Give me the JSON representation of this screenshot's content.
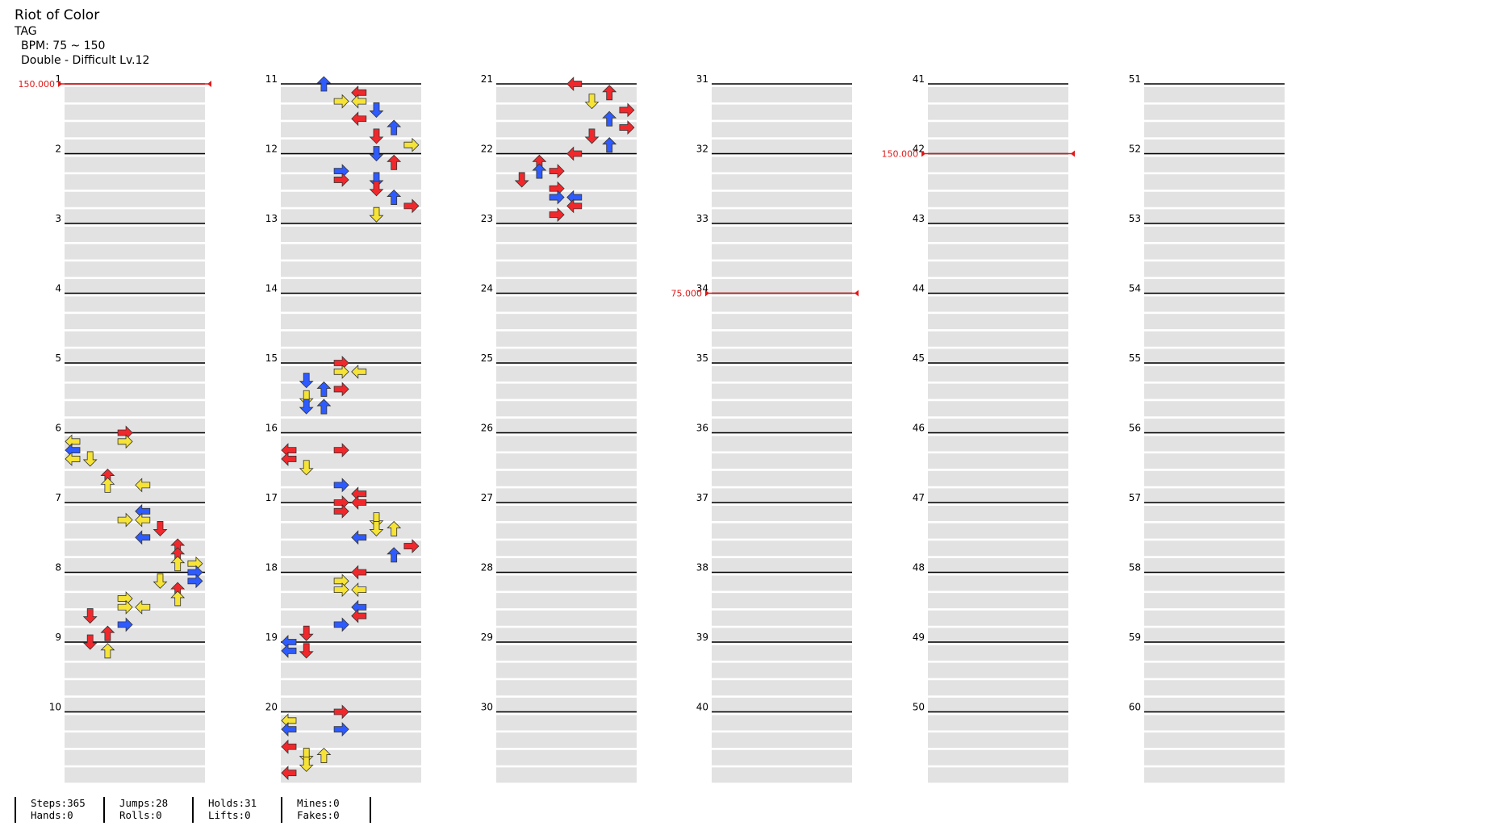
{
  "song": {
    "title": "Riot of Color",
    "artist": "TAG",
    "bpm_label": "BPM: 75 ~ 150",
    "difficulty_label": "Double - Difficult  Lv.12"
  },
  "measures": [
    "1",
    "2",
    "3",
    "4",
    "5",
    "6",
    "7",
    "8",
    "9",
    "10",
    "11",
    "12",
    "13",
    "14",
    "15",
    "16",
    "17",
    "18",
    "19",
    "20",
    "21",
    "22",
    "23",
    "24",
    "25",
    "26",
    "27",
    "28",
    "29",
    "30",
    "31",
    "32",
    "33",
    "34",
    "35",
    "36",
    "37",
    "38",
    "39",
    "40",
    "41",
    "42",
    "43",
    "44",
    "45",
    "46",
    "47",
    "48",
    "49",
    "50",
    "51",
    "52",
    "53",
    "54",
    "55",
    "56",
    "57",
    "58",
    "59",
    "60"
  ],
  "bpm_changes": [
    {
      "measure": 1,
      "label": "150.000"
    },
    {
      "measure": 34,
      "label": "75.000"
    },
    {
      "measure": 42,
      "label": "150.000"
    }
  ],
  "colors": {
    "red": "#f0282c",
    "blue": "#2e5bff",
    "yellow": "#f6e337",
    "orange": "#f7923a",
    "hold": "#7fe07a",
    "bpm_line": "#e01818",
    "lane_fill": "#e2e2e2"
  },
  "notes": [
    {
      "m": 6,
      "b": 0,
      "c": 3,
      "col": "red"
    },
    {
      "m": 6,
      "b": 0.5,
      "c": 3,
      "col": "yellow"
    },
    {
      "m": 6,
      "b": 0.5,
      "c": 0,
      "col": "yellow"
    },
    {
      "m": 6,
      "b": 1,
      "c": 0,
      "col": "blue"
    },
    {
      "m": 6,
      "b": 1.5,
      "c": 0,
      "col": "yellow"
    },
    {
      "m": 6,
      "b": 1.5,
      "c": 1,
      "col": "yellow"
    },
    {
      "m": 6,
      "b": 2.5,
      "c": 2,
      "col": "red"
    },
    {
      "m": 6,
      "b": 3,
      "c": 2,
      "col": "yellow"
    },
    {
      "m": 6,
      "b": 3,
      "c": 4,
      "col": "yellow"
    },
    {
      "m": 7,
      "b": 0.5,
      "c": 4,
      "col": "blue"
    },
    {
      "m": 7,
      "b": 1,
      "c": 3,
      "col": "yellow"
    },
    {
      "m": 7,
      "b": 1,
      "c": 4,
      "col": "yellow"
    },
    {
      "m": 7,
      "b": 1.5,
      "c": 5,
      "col": "red"
    },
    {
      "m": 7,
      "b": 2,
      "c": 4,
      "col": "blue"
    },
    {
      "m": 7,
      "b": 2.5,
      "c": 6,
      "col": "red"
    },
    {
      "m": 7,
      "b": 3,
      "c": 6,
      "col": "red"
    },
    {
      "m": 7,
      "b": 3.5,
      "c": 6,
      "col": "yellow"
    },
    {
      "m": 7,
      "b": 3.5,
      "c": 7,
      "col": "yellow"
    },
    {
      "m": 8,
      "b": 0,
      "c": 7,
      "col": "blue"
    },
    {
      "m": 8,
      "b": 0.5,
      "c": 5,
      "col": "yellow"
    },
    {
      "m": 8,
      "b": 0.5,
      "c": 7,
      "col": "blue"
    },
    {
      "m": 8,
      "b": 1,
      "c": 6,
      "col": "red"
    },
    {
      "m": 8,
      "b": 1.5,
      "c": 6,
      "col": "yellow"
    },
    {
      "m": 8,
      "b": 1.5,
      "c": 3,
      "col": "yellow"
    },
    {
      "m": 8,
      "b": 2,
      "c": 3,
      "col": "yellow"
    },
    {
      "m": 8,
      "b": 2,
      "c": 4,
      "col": "yellow"
    },
    {
      "m": 8,
      "b": 2.5,
      "c": 1,
      "col": "red"
    },
    {
      "m": 8,
      "b": 3,
      "c": 3,
      "col": "blue"
    },
    {
      "m": 8,
      "b": 3.5,
      "c": 2,
      "col": "red"
    },
    {
      "m": 9,
      "b": 0,
      "c": 1,
      "col": "red"
    },
    {
      "m": 9,
      "b": 0.5,
      "c": 2,
      "col": "yellow"
    },
    {
      "m": 11,
      "b": 0,
      "c": 2,
      "col": "blue"
    },
    {
      "m": 11,
      "b": 0.5,
      "c": 4,
      "col": "red"
    },
    {
      "m": 11,
      "b": 1,
      "c": 3,
      "col": "yellow"
    },
    {
      "m": 11,
      "b": 1,
      "c": 4,
      "col": "yellow"
    },
    {
      "m": 11,
      "b": 1.5,
      "c": 5,
      "col": "blue"
    },
    {
      "m": 11,
      "b": 2,
      "c": 4,
      "col": "red"
    },
    {
      "m": 11,
      "b": 2.5,
      "c": 6,
      "col": "blue"
    },
    {
      "m": 11,
      "b": 3,
      "c": 5,
      "col": "red"
    },
    {
      "m": 11,
      "b": 3.5,
      "c": 7,
      "col": "yellow"
    },
    {
      "m": 12,
      "b": 0,
      "c": 5,
      "col": "blue"
    },
    {
      "m": 12,
      "b": 0.5,
      "c": 6,
      "col": "red"
    },
    {
      "m": 12,
      "b": 1,
      "c": 3,
      "col": "blue"
    },
    {
      "m": 12,
      "b": 1.5,
      "c": 3,
      "col": "red"
    },
    {
      "m": 12,
      "b": 1.5,
      "c": 5,
      "col": "blue"
    },
    {
      "m": 12,
      "b": 2,
      "c": 5,
      "col": "red"
    },
    {
      "m": 12,
      "b": 2.5,
      "c": 6,
      "col": "blue"
    },
    {
      "m": 12,
      "b": 3,
      "c": 7,
      "col": "red"
    },
    {
      "m": 12,
      "b": 3.5,
      "c": 5,
      "col": "yellow"
    },
    {
      "m": 15,
      "b": 0,
      "c": 3,
      "col": "red"
    },
    {
      "m": 15,
      "b": 0.5,
      "c": 3,
      "col": "yellow"
    },
    {
      "m": 15,
      "b": 0.5,
      "c": 4,
      "col": "yellow"
    },
    {
      "m": 15,
      "b": 1,
      "c": 1,
      "col": "blue"
    },
    {
      "m": 15,
      "b": 1.5,
      "c": 2,
      "col": "blue"
    },
    {
      "m": 15,
      "b": 1.5,
      "c": 3,
      "col": "red"
    },
    {
      "m": 15,
      "b": 2,
      "c": 1,
      "col": "yellow"
    },
    {
      "m": 15,
      "b": 2.5,
      "c": 1,
      "col": "blue"
    },
    {
      "m": 15,
      "b": 2.5,
      "c": 2,
      "col": "blue"
    },
    {
      "m": 16,
      "b": 1,
      "c": 0,
      "col": "red"
    },
    {
      "m": 16,
      "b": 1,
      "c": 3,
      "col": "red"
    },
    {
      "m": 16,
      "b": 1.5,
      "c": 0,
      "col": "red"
    },
    {
      "m": 16,
      "b": 2,
      "c": 1,
      "col": "yellow"
    },
    {
      "m": 16,
      "b": 3,
      "c": 3,
      "col": "blue"
    },
    {
      "m": 16,
      "b": 3.5,
      "c": 4,
      "col": "red"
    },
    {
      "m": 17,
      "b": 0,
      "c": 3,
      "col": "red"
    },
    {
      "m": 17,
      "b": 0,
      "c": 4,
      "col": "red"
    },
    {
      "m": 17,
      "b": 0.5,
      "c": 3,
      "col": "red"
    },
    {
      "m": 17,
      "b": 1,
      "c": 5,
      "col": "yellow"
    },
    {
      "m": 17,
      "b": 1.5,
      "c": 5,
      "col": "yellow"
    },
    {
      "m": 17,
      "b": 1.5,
      "c": 6,
      "col": "yellow"
    },
    {
      "m": 17,
      "b": 2,
      "c": 4,
      "col": "blue"
    },
    {
      "m": 17,
      "b": 2.5,
      "c": 7,
      "col": "red"
    },
    {
      "m": 17,
      "b": 3,
      "c": 6,
      "col": "blue"
    },
    {
      "m": 18,
      "b": 0,
      "c": 4,
      "col": "red"
    },
    {
      "m": 18,
      "b": 0.5,
      "c": 3,
      "col": "yellow"
    },
    {
      "m": 18,
      "b": 1,
      "c": 3,
      "col": "yellow"
    },
    {
      "m": 18,
      "b": 1,
      "c": 4,
      "col": "yellow"
    },
    {
      "m": 18,
      "b": 2,
      "c": 4,
      "col": "blue"
    },
    {
      "m": 18,
      "b": 2.5,
      "c": 4,
      "col": "red"
    },
    {
      "m": 18,
      "b": 3,
      "c": 3,
      "col": "blue"
    },
    {
      "m": 18,
      "b": 3.5,
      "c": 1,
      "col": "red"
    },
    {
      "m": 19,
      "b": 0,
      "c": 0,
      "col": "blue"
    },
    {
      "m": 19,
      "b": 0.5,
      "c": 1,
      "col": "red"
    },
    {
      "m": 19,
      "b": 0.5,
      "c": 0,
      "col": "blue"
    },
    {
      "m": 20,
      "b": 0,
      "c": 3,
      "col": "red"
    },
    {
      "m": 20,
      "b": 0.5,
      "c": 0,
      "col": "yellow"
    },
    {
      "m": 20,
      "b": 1,
      "c": 0,
      "col": "blue"
    },
    {
      "m": 20,
      "b": 1,
      "c": 3,
      "col": "blue"
    },
    {
      "m": 20,
      "b": 2,
      "c": 0,
      "col": "red"
    },
    {
      "m": 20,
      "b": 2.5,
      "c": 1,
      "col": "yellow"
    },
    {
      "m": 20,
      "b": 2.5,
      "c": 2,
      "col": "yellow"
    },
    {
      "m": 20,
      "b": 3,
      "c": 1,
      "col": "yellow"
    },
    {
      "m": 20,
      "b": 3.5,
      "c": 0,
      "col": "red"
    },
    {
      "m": 21,
      "b": 0,
      "c": 4,
      "col": "red"
    },
    {
      "m": 21,
      "b": 0.5,
      "c": 6,
      "col": "red"
    },
    {
      "m": 21,
      "b": 1,
      "c": 5,
      "col": "yellow"
    },
    {
      "m": 21,
      "b": 1.5,
      "c": 7,
      "col": "red"
    },
    {
      "m": 21,
      "b": 2,
      "c": 6,
      "col": "blue"
    },
    {
      "m": 21,
      "b": 2.5,
      "c": 7,
      "col": "red"
    },
    {
      "m": 21,
      "b": 3,
      "c": 5,
      "col": "red"
    },
    {
      "m": 21,
      "b": 3.5,
      "c": 6,
      "col": "blue"
    },
    {
      "m": 22,
      "b": 0,
      "c": 4,
      "col": "red"
    },
    {
      "m": 22,
      "b": 0.5,
      "c": 2,
      "col": "red"
    },
    {
      "m": 22,
      "b": 1,
      "c": 2,
      "col": "blue"
    },
    {
      "m": 22,
      "b": 1,
      "c": 3,
      "col": "red"
    },
    {
      "m": 22,
      "b": 1.5,
      "c": 1,
      "col": "red"
    },
    {
      "m": 22,
      "b": 2,
      "c": 3,
      "col": "red"
    },
    {
      "m": 22,
      "b": 2.5,
      "c": 3,
      "col": "blue"
    },
    {
      "m": 22,
      "b": 2.5,
      "c": 4,
      "col": "blue"
    },
    {
      "m": 22,
      "b": 3,
      "c": 4,
      "col": "red"
    },
    {
      "m": 22,
      "b": 3.5,
      "c": 3,
      "col": "red"
    }
  ],
  "stats": {
    "steps": "Steps:365",
    "hands": "Hands:0",
    "jumps": "Jumps:28",
    "rolls": "Rolls:0",
    "holds": "Holds:31",
    "lifts": "Lifts:0",
    "mines": "Mines:0",
    "fakes": "Fakes:0"
  }
}
